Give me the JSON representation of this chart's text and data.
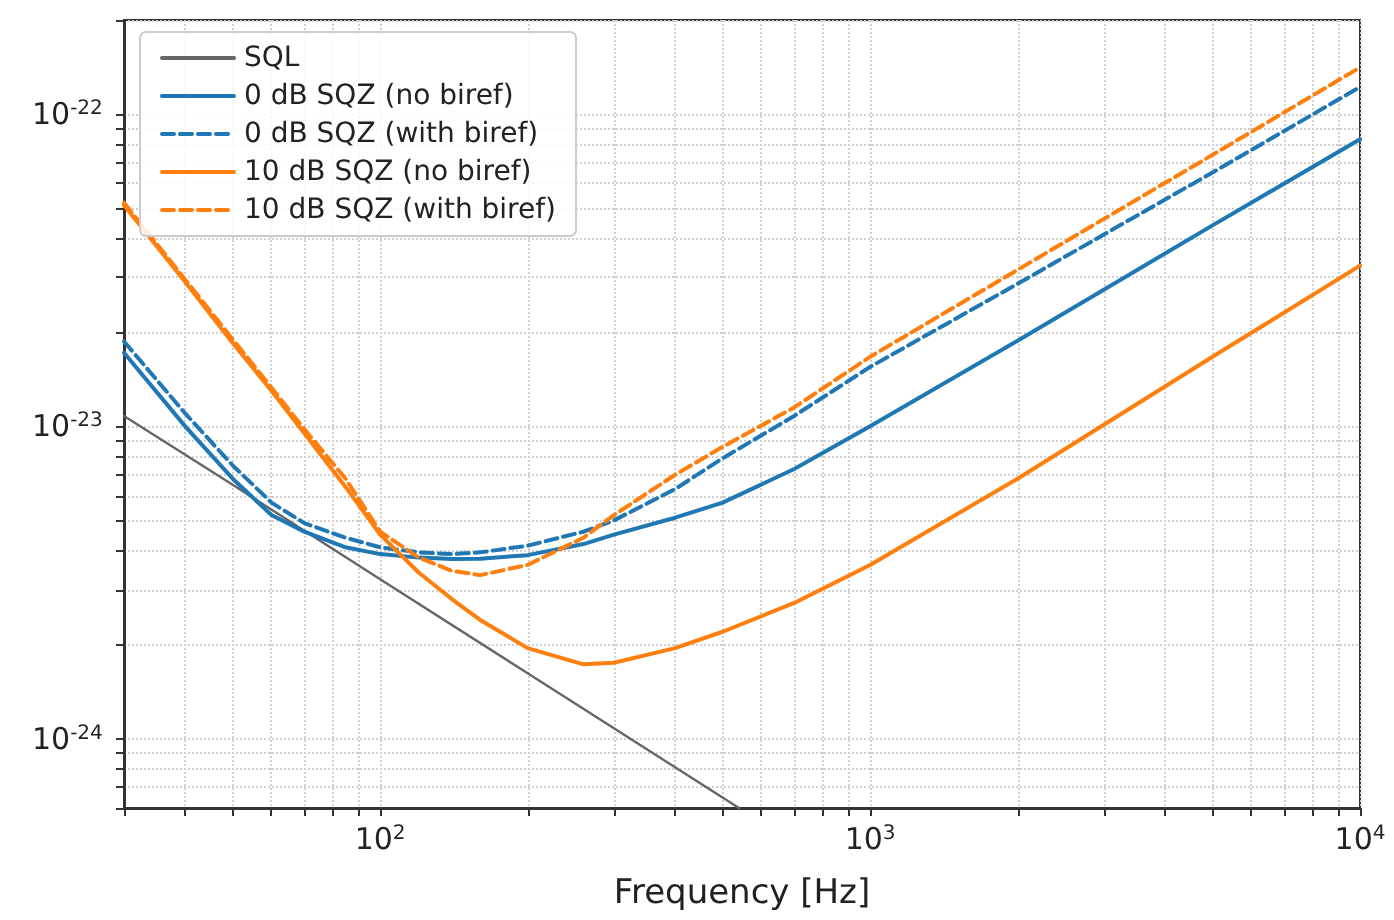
{
  "chart_data": {
    "type": "line",
    "xlabel": "Frequency [Hz]",
    "log": "xy",
    "grid": true,
    "legend": "top left",
    "marker": "none",
    "xlim": [
      30,
      10000
    ],
    "xticks": [
      {
        "value": 30,
        "label": null
      },
      {
        "value": 40,
        "label": null
      },
      {
        "value": 50,
        "label": null
      },
      {
        "value": 60,
        "label": null
      },
      {
        "value": 70,
        "label": null
      },
      {
        "value": 80,
        "label": null
      },
      {
        "value": 90,
        "label": null
      },
      {
        "value": 100,
        "label": "10$^{2}$"
      },
      {
        "value": 200,
        "label": null
      },
      {
        "value": 300,
        "label": null
      },
      {
        "value": 400,
        "label": null
      },
      {
        "value": 500,
        "label": null
      },
      {
        "value": 600,
        "label": null
      },
      {
        "value": 700,
        "label": null
      },
      {
        "value": 800,
        "label": null
      },
      {
        "value": 900,
        "label": null
      },
      {
        "value": 1000,
        "label": "10$^{3}$"
      },
      {
        "value": 2000,
        "label": null
      },
      {
        "value": 3000,
        "label": null
      },
      {
        "value": 4000,
        "label": null
      },
      {
        "value": 5000,
        "label": null
      },
      {
        "value": 6000,
        "label": null
      },
      {
        "value": 7000,
        "label": null
      },
      {
        "value": 8000,
        "label": null
      },
      {
        "value": 9000,
        "label": null
      },
      {
        "value": 10000,
        "label": "10$^{4}$"
      }
    ],
    "ylim": [
      6e-25,
      2e-22
    ],
    "yticks": [
      {
        "value": 6e-25,
        "label": null
      },
      {
        "value": 7e-25,
        "label": null
      },
      {
        "value": 8e-25,
        "label": null
      },
      {
        "value": 9e-25,
        "label": null
      },
      {
        "value": 1e-24,
        "label": "10$^{-24}$"
      },
      {
        "value": 2e-24,
        "label": null
      },
      {
        "value": 3e-24,
        "label": null
      },
      {
        "value": 4e-24,
        "label": null
      },
      {
        "value": 5e-24,
        "label": null
      },
      {
        "value": 6e-24,
        "label": null
      },
      {
        "value": 7e-24,
        "label": null
      },
      {
        "value": 8e-24,
        "label": null
      },
      {
        "value": 9e-24,
        "label": null
      },
      {
        "value": 1e-23,
        "label": "10$^{-23}$"
      },
      {
        "value": 2e-23,
        "label": null
      },
      {
        "value": 3e-23,
        "label": null
      },
      {
        "value": 4e-23,
        "label": null
      },
      {
        "value": 5e-23,
        "label": null
      },
      {
        "value": 6e-23,
        "label": null
      },
      {
        "value": 7e-23,
        "label": null
      },
      {
        "value": 8e-23,
        "label": null
      },
      {
        "value": 9e-23,
        "label": null
      },
      {
        "value": 1e-22,
        "label": "10$^{-22}$"
      },
      {
        "value": 2e-22,
        "label": null
      }
    ],
    "x": [
      30,
      40,
      50,
      60,
      70,
      85,
      100,
      120,
      140,
      160,
      200,
      260,
      300,
      400,
      500,
      700,
      1000,
      2000,
      5000,
      10000
    ],
    "series": [
      {
        "name": "SQL",
        "color": "#666666",
        "line_style": "solid",
        "x": [
          30,
          50,
          100,
          200,
          300,
          540
        ],
        "values": [
          1.08e-23,
          6.5e-24,
          3.24e-24,
          1.62e-24,
          1.08e-24,
          6e-25
        ]
      },
      {
        "name": "0 dB SQZ (no biref)",
        "color": "#1f77b4",
        "line_style": "solid",
        "values": [
          1.72e-23,
          1e-23,
          6.8e-24,
          5.2e-24,
          4.6e-24,
          4.1e-24,
          3.9e-24,
          3.8e-24,
          3.76e-24,
          3.77e-24,
          3.87e-24,
          4.2e-24,
          4.5e-24,
          5.1e-24,
          5.7e-24,
          7.3e-24,
          1e-23,
          1.88e-23,
          4.4e-23,
          8.3e-23
        ]
      },
      {
        "name": "0 dB SQZ (with biref)",
        "color": "#1f77b4",
        "line_style": "dashed",
        "values": [
          1.87e-23,
          1.1e-23,
          7.5e-24,
          5.7e-24,
          4.9e-24,
          4.4e-24,
          4.1e-24,
          3.95e-24,
          3.9e-24,
          3.95e-24,
          4.15e-24,
          4.6e-24,
          5e-24,
          6.3e-24,
          7.9e-24,
          1.08e-23,
          1.55e-23,
          2.86e-23,
          6.5e-23,
          1.22e-22
        ]
      },
      {
        "name": "10 dB SQZ (no biref)",
        "color": "#ff7f0e",
        "line_style": "solid",
        "values": [
          5.1e-23,
          2.9e-23,
          1.85e-23,
          1.3e-23,
          9.5e-24,
          6.4e-24,
          4.5e-24,
          3.4e-24,
          2.8e-24,
          2.4e-24,
          1.95e-24,
          1.73e-24,
          1.75e-24,
          1.95e-24,
          2.2e-24,
          2.72e-24,
          3.6e-24,
          6.8e-24,
          1.67e-23,
          3.27e-23
        ]
      },
      {
        "name": "10 dB SQZ (with biref)",
        "color": "#ff7f0e",
        "line_style": "dashed",
        "values": [
          5.2e-23,
          2.95e-23,
          1.9e-23,
          1.33e-23,
          9.8e-24,
          6.8e-24,
          4.6e-24,
          3.8e-24,
          3.45e-24,
          3.34e-24,
          3.6e-24,
          4.4e-24,
          5.2e-24,
          7e-24,
          8.6e-24,
          1.15e-23,
          1.67e-23,
          3.17e-23,
          7.4e-23,
          1.41e-22
        ]
      }
    ]
  }
}
